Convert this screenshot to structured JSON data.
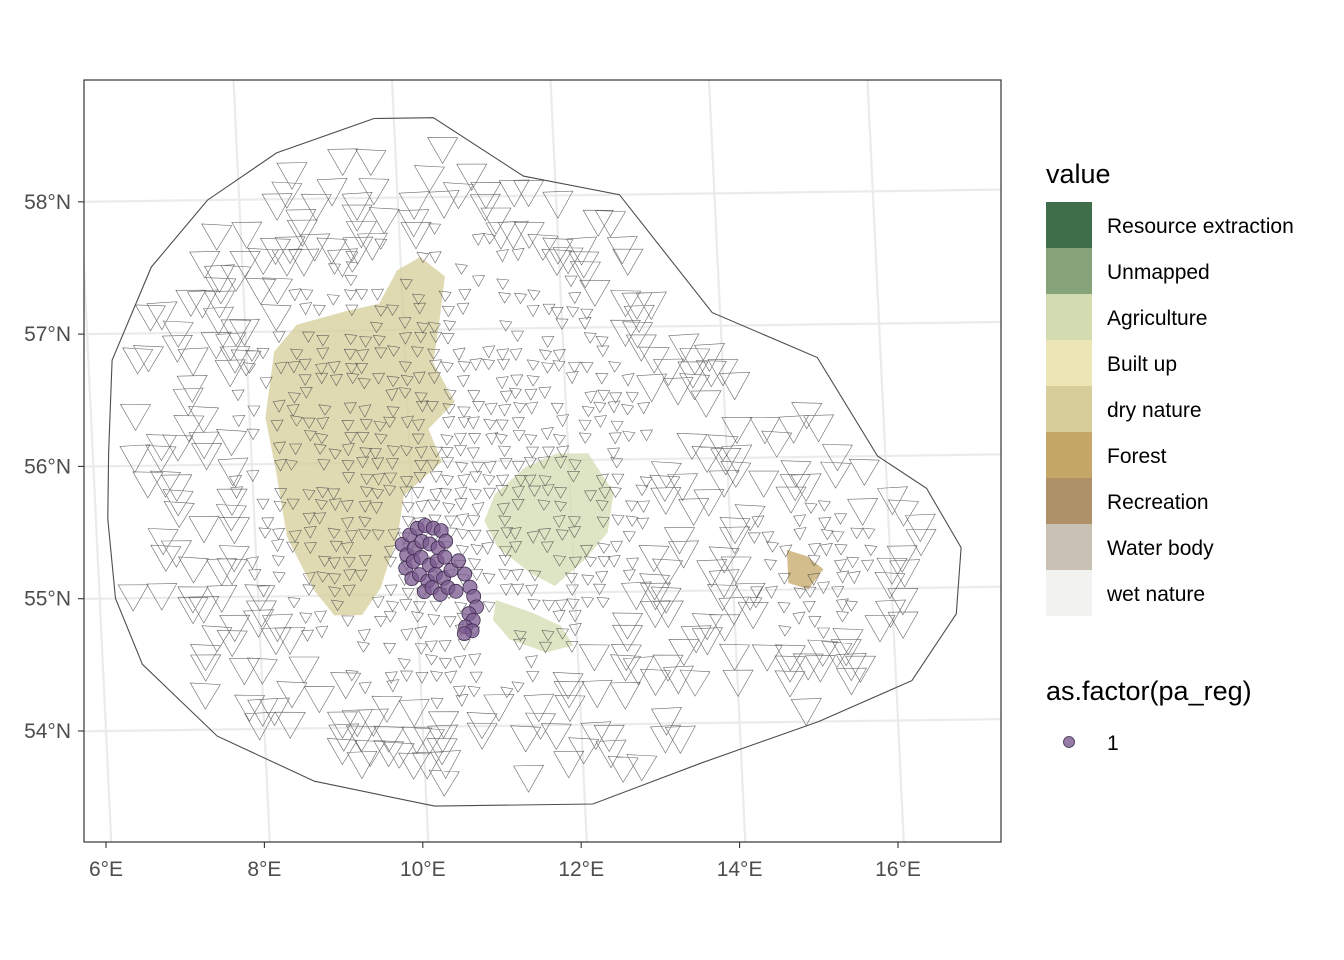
{
  "chart_data": {
    "type": "scatter",
    "axes": {
      "x_ticks": [
        "6°E",
        "8°E",
        "10°E",
        "12°E",
        "14°E",
        "16°E"
      ],
      "y_ticks": [
        "58°N",
        "57°N",
        "56°N",
        "55°N",
        "54°N"
      ],
      "grid": true
    },
    "land_cover_legend": {
      "title": "value",
      "items": [
        {
          "label": "Resource extraction",
          "color": "#3f6e4b"
        },
        {
          "label": "Unmapped",
          "color": "#86a37a"
        },
        {
          "label": "Agriculture",
          "color": "#d3dcb0"
        },
        {
          "label": "Built up",
          "color": "#ece5b5"
        },
        {
          "label": "dry nature",
          "color": "#d6cd9a"
        },
        {
          "label": "Forest",
          "color": "#c4a766"
        },
        {
          "label": "Recreation",
          "color": "#ae9168"
        },
        {
          "label": "Water body",
          "color": "#c9c2b4"
        },
        {
          "label": "wet nature",
          "color": "#f2f2f0"
        }
      ]
    },
    "points_legend": {
      "title": "as.factor(pa_reg)",
      "items": [
        {
          "label": "1",
          "color": "#7b5a8f"
        }
      ]
    },
    "points": [
      [
        9.85,
        55.38
      ],
      [
        9.95,
        55.45
      ],
      [
        10.05,
        55.5
      ],
      [
        10.15,
        55.52
      ],
      [
        10.25,
        55.5
      ],
      [
        10.35,
        55.48
      ],
      [
        9.9,
        55.3
      ],
      [
        10.0,
        55.35
      ],
      [
        10.1,
        55.4
      ],
      [
        10.2,
        55.38
      ],
      [
        10.3,
        55.35
      ],
      [
        10.4,
        55.4
      ],
      [
        9.88,
        55.2
      ],
      [
        9.98,
        55.25
      ],
      [
        10.08,
        55.28
      ],
      [
        10.18,
        55.22
      ],
      [
        10.28,
        55.25
      ],
      [
        10.38,
        55.28
      ],
      [
        9.95,
        55.12
      ],
      [
        10.05,
        55.15
      ],
      [
        10.15,
        55.1
      ],
      [
        10.25,
        55.15
      ],
      [
        10.35,
        55.12
      ],
      [
        10.45,
        55.18
      ],
      [
        10.1,
        55.02
      ],
      [
        10.2,
        55.05
      ],
      [
        10.3,
        55.0
      ],
      [
        10.4,
        55.05
      ],
      [
        10.5,
        55.02
      ],
      [
        10.55,
        55.25
      ],
      [
        10.62,
        55.15
      ],
      [
        10.68,
        55.05
      ],
      [
        10.72,
        54.98
      ],
      [
        10.75,
        54.9
      ],
      [
        10.65,
        54.85
      ],
      [
        10.7,
        54.8
      ],
      [
        10.6,
        54.75
      ],
      [
        10.68,
        54.72
      ],
      [
        10.58,
        54.7
      ]
    ],
    "land_patches": [
      {
        "class": "dry nature",
        "coords": [
          [
            10.25,
            57.55
          ],
          [
            10.55,
            57.4
          ],
          [
            10.45,
            57.05
          ],
          [
            10.35,
            56.75
          ],
          [
            10.6,
            56.45
          ],
          [
            10.25,
            56.25
          ],
          [
            10.4,
            56.0
          ],
          [
            9.9,
            55.75
          ],
          [
            9.8,
            55.45
          ],
          [
            9.55,
            55.05
          ],
          [
            9.3,
            54.85
          ],
          [
            8.95,
            54.85
          ],
          [
            8.7,
            55.05
          ],
          [
            8.4,
            55.45
          ],
          [
            8.3,
            55.95
          ],
          [
            8.2,
            56.35
          ],
          [
            8.35,
            56.85
          ],
          [
            8.65,
            57.05
          ],
          [
            9.3,
            57.15
          ],
          [
            9.7,
            57.2
          ],
          [
            9.95,
            57.45
          ]
        ]
      },
      {
        "class": "Agriculture",
        "coords": [
          [
            11.05,
            55.75
          ],
          [
            11.45,
            55.95
          ],
          [
            11.85,
            56.05
          ],
          [
            12.25,
            56.05
          ],
          [
            12.55,
            55.75
          ],
          [
            12.45,
            55.45
          ],
          [
            12.15,
            55.25
          ],
          [
            11.75,
            55.05
          ],
          [
            11.45,
            55.15
          ],
          [
            11.05,
            55.35
          ],
          [
            10.9,
            55.55
          ]
        ]
      },
      {
        "class": "Agriculture",
        "coords": [
          [
            11.0,
            54.95
          ],
          [
            11.45,
            54.85
          ],
          [
            11.8,
            54.75
          ],
          [
            11.95,
            54.6
          ],
          [
            11.6,
            54.55
          ],
          [
            11.15,
            54.65
          ],
          [
            10.95,
            54.8
          ]
        ]
      },
      {
        "class": "Forest",
        "coords": [
          [
            14.7,
            55.3
          ],
          [
            14.95,
            55.25
          ],
          [
            15.15,
            55.15
          ],
          [
            14.95,
            55.0
          ],
          [
            14.7,
            55.05
          ]
        ]
      }
    ]
  }
}
